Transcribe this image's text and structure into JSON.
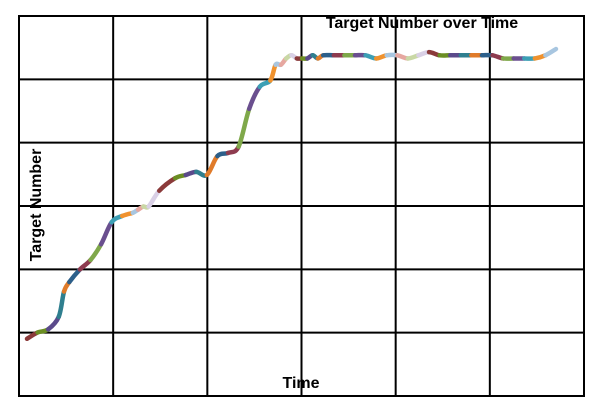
{
  "chart_data": {
    "type": "line",
    "title": "Target Number over Time",
    "xlabel": "Time",
    "ylabel": "Target Number",
    "grid": true,
    "x_divisions": 6,
    "y_divisions": 6,
    "legend": "none",
    "x": [
      0,
      0.02,
      0.04,
      0.06,
      0.07,
      0.08,
      0.1,
      0.12,
      0.14,
      0.16,
      0.18,
      0.2,
      0.21,
      0.22,
      0.23,
      0.25,
      0.28,
      0.3,
      0.32,
      0.34,
      0.36,
      0.38,
      0.4,
      0.42,
      0.44,
      0.46,
      0.47,
      0.48,
      0.49,
      0.5,
      0.51,
      0.52,
      0.53,
      0.54,
      0.55,
      0.56,
      0.58,
      0.6,
      0.62,
      0.64,
      0.66,
      0.68,
      0.7,
      0.72,
      0.74,
      0.76,
      0.78,
      0.8,
      0.82,
      0.84,
      0.86,
      0.88,
      0.9,
      0.92,
      0.94,
      0.96,
      0.98,
      1.0
    ],
    "y": [
      0.08,
      0.1,
      0.11,
      0.15,
      0.23,
      0.26,
      0.3,
      0.33,
      0.38,
      0.45,
      0.47,
      0.48,
      0.49,
      0.5,
      0.5,
      0.55,
      0.59,
      0.6,
      0.61,
      0.6,
      0.66,
      0.67,
      0.69,
      0.81,
      0.88,
      0.9,
      0.95,
      0.95,
      0.97,
      0.98,
      0.97,
      0.97,
      0.97,
      0.98,
      0.97,
      0.98,
      0.98,
      0.98,
      0.98,
      0.98,
      0.97,
      0.98,
      0.98,
      0.97,
      0.98,
      0.99,
      0.98,
      0.98,
      0.98,
      0.98,
      0.98,
      0.98,
      0.97,
      0.97,
      0.97,
      0.97,
      0.98,
      1.0
    ],
    "colors": [
      "#8B3A3A",
      "#6B8E23",
      "#5B4A8B",
      "#2F7F8F",
      "#E07B2A",
      "#2C5F8A",
      "#8E3B4F",
      "#7FA84A",
      "#6A4F8F",
      "#3C9FB5",
      "#F0922E",
      "#A8C6E0",
      "#E6A7A0",
      "#C9D8A5",
      "#D9D0E6"
    ]
  }
}
